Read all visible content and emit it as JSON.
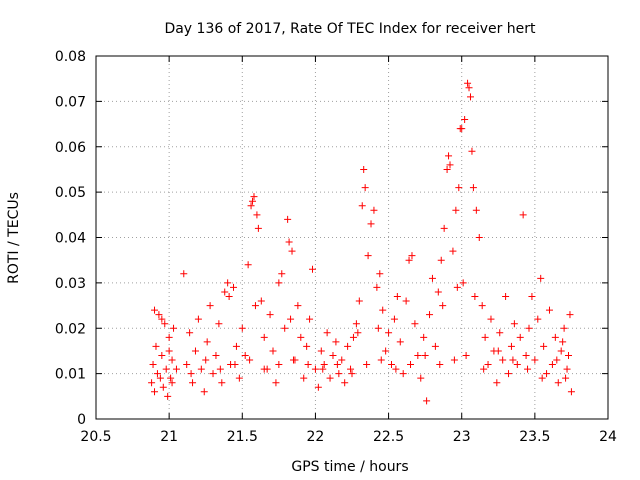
{
  "chart_data": {
    "type": "scatter",
    "title": "Day 136 of 2017, Rate Of TEC Index for receiver hert",
    "xlabel": "GPS time / hours",
    "ylabel": "ROTI / TECUs",
    "xlim": [
      20.5,
      24
    ],
    "ylim": [
      0,
      0.08
    ],
    "xticks": [
      20.5,
      21,
      21.5,
      22,
      22.5,
      23,
      23.5,
      24
    ],
    "xtick_labels": [
      "20.5",
      "21",
      "21.5",
      "22",
      "22.5",
      "23",
      "23.5",
      "24"
    ],
    "yticks": [
      0,
      0.01,
      0.02,
      0.03,
      0.04,
      0.05,
      0.06,
      0.07,
      0.08
    ],
    "ytick_labels": [
      "0",
      "0.01",
      "0.02",
      "0.03",
      "0.04",
      "0.05",
      "0.06",
      "0.07",
      "0.08"
    ],
    "grid": true,
    "marker": "plus",
    "color": "#ff0000",
    "series": [
      {
        "name": "ROTI",
        "points": [
          [
            20.88,
            0.008
          ],
          [
            20.89,
            0.012
          ],
          [
            20.9,
            0.006
          ],
          [
            20.91,
            0.016
          ],
          [
            20.92,
            0.01
          ],
          [
            20.93,
            0.023
          ],
          [
            20.94,
            0.009
          ],
          [
            20.95,
            0.014
          ],
          [
            20.96,
            0.007
          ],
          [
            20.97,
            0.021
          ],
          [
            20.98,
            0.011
          ],
          [
            20.99,
            0.005
          ],
          [
            21.0,
            0.018
          ],
          [
            21.01,
            0.009
          ],
          [
            21.02,
            0.013
          ],
          [
            21.03,
            0.02
          ],
          [
            20.9,
            0.024
          ],
          [
            20.95,
            0.022
          ],
          [
            21.0,
            0.015
          ],
          [
            21.02,
            0.008
          ],
          [
            21.1,
            0.032
          ],
          [
            21.12,
            0.012
          ],
          [
            21.14,
            0.019
          ],
          [
            21.16,
            0.008
          ],
          [
            21.18,
            0.015
          ],
          [
            21.2,
            0.022
          ],
          [
            21.22,
            0.011
          ],
          [
            21.24,
            0.006
          ],
          [
            21.26,
            0.017
          ],
          [
            21.28,
            0.025
          ],
          [
            21.3,
            0.01
          ],
          [
            21.32,
            0.014
          ],
          [
            21.34,
            0.021
          ],
          [
            21.36,
            0.008
          ],
          [
            21.38,
            0.028
          ],
          [
            21.4,
            0.03
          ],
          [
            21.42,
            0.012
          ],
          [
            21.44,
            0.029
          ],
          [
            21.46,
            0.016
          ],
          [
            21.48,
            0.009
          ],
          [
            21.5,
            0.02
          ],
          [
            21.52,
            0.014
          ],
          [
            21.54,
            0.034
          ],
          [
            21.56,
            0.047
          ],
          [
            21.57,
            0.048
          ],
          [
            21.58,
            0.049
          ],
          [
            21.6,
            0.045
          ],
          [
            21.61,
            0.042
          ],
          [
            21.63,
            0.026
          ],
          [
            21.65,
            0.018
          ],
          [
            21.67,
            0.011
          ],
          [
            21.69,
            0.023
          ],
          [
            21.71,
            0.015
          ],
          [
            21.73,
            0.008
          ],
          [
            21.75,
            0.03
          ],
          [
            21.77,
            0.032
          ],
          [
            21.79,
            0.02
          ],
          [
            21.81,
            0.044
          ],
          [
            21.82,
            0.039
          ],
          [
            21.84,
            0.037
          ],
          [
            21.86,
            0.013
          ],
          [
            21.88,
            0.025
          ],
          [
            21.9,
            0.018
          ],
          [
            21.92,
            0.009
          ],
          [
            21.94,
            0.016
          ],
          [
            21.96,
            0.022
          ],
          [
            21.98,
            0.033
          ],
          [
            22.0,
            0.011
          ],
          [
            22.02,
            0.007
          ],
          [
            22.04,
            0.015
          ],
          [
            22.06,
            0.012
          ],
          [
            22.08,
            0.019
          ],
          [
            22.1,
            0.009
          ],
          [
            22.12,
            0.014
          ],
          [
            22.14,
            0.017
          ],
          [
            22.16,
            0.01
          ],
          [
            22.18,
            0.013
          ],
          [
            22.2,
            0.008
          ],
          [
            22.22,
            0.016
          ],
          [
            22.24,
            0.011
          ],
          [
            22.26,
            0.018
          ],
          [
            22.28,
            0.021
          ],
          [
            22.3,
            0.026
          ],
          [
            22.32,
            0.047
          ],
          [
            22.33,
            0.055
          ],
          [
            22.34,
            0.051
          ],
          [
            22.36,
            0.036
          ],
          [
            22.38,
            0.043
          ],
          [
            22.4,
            0.046
          ],
          [
            22.42,
            0.029
          ],
          [
            22.44,
            0.032
          ],
          [
            22.46,
            0.024
          ],
          [
            22.48,
            0.015
          ],
          [
            22.5,
            0.019
          ],
          [
            22.52,
            0.012
          ],
          [
            22.54,
            0.022
          ],
          [
            22.56,
            0.027
          ],
          [
            22.58,
            0.017
          ],
          [
            22.6,
            0.01
          ],
          [
            22.62,
            0.026
          ],
          [
            22.64,
            0.035
          ],
          [
            22.66,
            0.036
          ],
          [
            22.68,
            0.021
          ],
          [
            22.7,
            0.014
          ],
          [
            22.72,
            0.009
          ],
          [
            22.74,
            0.018
          ],
          [
            22.76,
            0.004
          ],
          [
            22.78,
            0.023
          ],
          [
            22.8,
            0.031
          ],
          [
            22.82,
            0.016
          ],
          [
            22.84,
            0.028
          ],
          [
            22.86,
            0.035
          ],
          [
            22.88,
            0.042
          ],
          [
            22.9,
            0.055
          ],
          [
            22.91,
            0.058
          ],
          [
            22.92,
            0.056
          ],
          [
            22.94,
            0.037
          ],
          [
            22.96,
            0.046
          ],
          [
            22.98,
            0.051
          ],
          [
            22.99,
            0.064
          ],
          [
            23.0,
            0.064
          ],
          [
            23.02,
            0.066
          ],
          [
            23.04,
            0.074
          ],
          [
            23.05,
            0.073
          ],
          [
            23.06,
            0.071
          ],
          [
            23.07,
            0.059
          ],
          [
            23.08,
            0.051
          ],
          [
            23.1,
            0.046
          ],
          [
            23.12,
            0.04
          ],
          [
            23.14,
            0.025
          ],
          [
            23.16,
            0.018
          ],
          [
            23.18,
            0.012
          ],
          [
            23.2,
            0.022
          ],
          [
            23.22,
            0.015
          ],
          [
            23.24,
            0.008
          ],
          [
            23.26,
            0.019
          ],
          [
            23.28,
            0.013
          ],
          [
            23.3,
            0.027
          ],
          [
            23.32,
            0.01
          ],
          [
            23.34,
            0.016
          ],
          [
            23.36,
            0.021
          ],
          [
            23.38,
            0.012
          ],
          [
            23.4,
            0.018
          ],
          [
            23.42,
            0.045
          ],
          [
            23.44,
            0.014
          ],
          [
            23.46,
            0.02
          ],
          [
            23.48,
            0.027
          ],
          [
            23.5,
            0.013
          ],
          [
            23.52,
            0.022
          ],
          [
            23.54,
            0.031
          ],
          [
            23.56,
            0.016
          ],
          [
            23.58,
            0.01
          ],
          [
            23.6,
            0.024
          ],
          [
            23.62,
            0.012
          ],
          [
            23.64,
            0.018
          ],
          [
            23.66,
            0.008
          ],
          [
            23.68,
            0.015
          ],
          [
            23.7,
            0.02
          ],
          [
            23.72,
            0.011
          ],
          [
            23.74,
            0.023
          ],
          [
            23.75,
            0.006
          ],
          [
            23.73,
            0.014
          ],
          [
            23.71,
            0.009
          ],
          [
            23.69,
            0.017
          ],
          [
            23.65,
            0.013
          ],
          [
            23.55,
            0.009
          ],
          [
            23.45,
            0.011
          ],
          [
            23.35,
            0.013
          ],
          [
            23.25,
            0.015
          ],
          [
            23.15,
            0.011
          ],
          [
            23.03,
            0.014
          ],
          [
            22.95,
            0.013
          ],
          [
            22.85,
            0.012
          ],
          [
            22.75,
            0.014
          ],
          [
            22.65,
            0.012
          ],
          [
            22.55,
            0.011
          ],
          [
            22.45,
            0.013
          ],
          [
            22.35,
            0.012
          ],
          [
            22.25,
            0.01
          ],
          [
            22.15,
            0.012
          ],
          [
            22.05,
            0.011
          ],
          [
            21.95,
            0.012
          ],
          [
            21.85,
            0.013
          ],
          [
            21.75,
            0.012
          ],
          [
            21.65,
            0.011
          ],
          [
            21.55,
            0.013
          ],
          [
            21.45,
            0.012
          ],
          [
            21.35,
            0.011
          ],
          [
            21.25,
            0.013
          ],
          [
            21.15,
            0.01
          ],
          [
            21.05,
            0.011
          ],
          [
            22.97,
            0.029
          ],
          [
            23.01,
            0.03
          ],
          [
            23.09,
            0.027
          ],
          [
            22.87,
            0.025
          ],
          [
            22.43,
            0.02
          ],
          [
            22.29,
            0.019
          ],
          [
            21.83,
            0.022
          ],
          [
            21.59,
            0.025
          ],
          [
            21.41,
            0.027
          ]
        ]
      }
    ]
  }
}
